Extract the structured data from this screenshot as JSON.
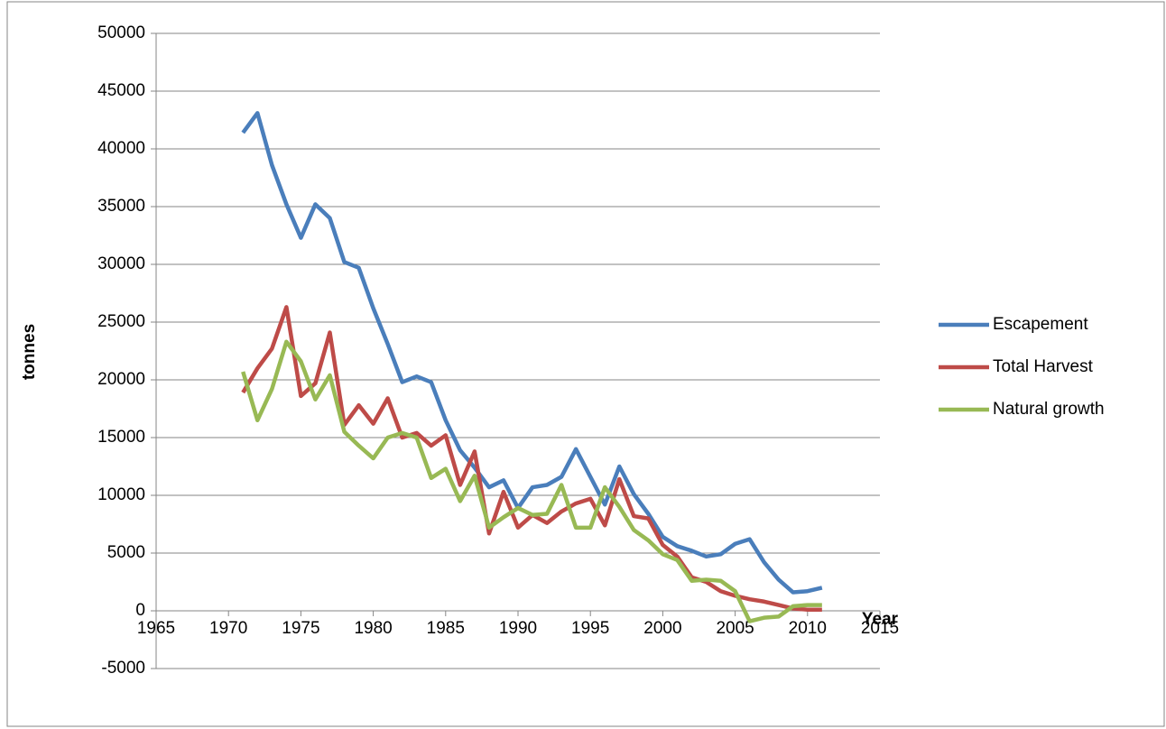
{
  "chart_data": {
    "type": "line",
    "x_label": "Year",
    "y_label": "tonnes",
    "x": [
      1971,
      1972,
      1973,
      1974,
      1975,
      1976,
      1977,
      1978,
      1979,
      1980,
      1981,
      1982,
      1983,
      1984,
      1985,
      1986,
      1987,
      1988,
      1989,
      1990,
      1991,
      1992,
      1993,
      1994,
      1995,
      1996,
      1997,
      1998,
      1999,
      2000,
      2001,
      2002,
      2003,
      2004,
      2005,
      2006,
      2007,
      2008,
      2009,
      2010,
      2011
    ],
    "series": [
      {
        "name": "Escapement",
        "color": "#4a7ebb",
        "values": [
          41400,
          43100,
          38600,
          35200,
          32300,
          35200,
          34000,
          30200,
          29700,
          26200,
          23100,
          19800,
          20300,
          19800,
          16500,
          13900,
          12400,
          10700,
          11300,
          8900,
          10700,
          10900,
          11600,
          14000,
          11600,
          9200,
          12500,
          10100,
          8400,
          6400,
          5600,
          5200,
          4700,
          4900,
          5800,
          6200,
          4200,
          2700,
          1600,
          1700,
          2000
        ]
      },
      {
        "name": "Total Harvest",
        "color": "#be4b48",
        "values": [
          18900,
          21000,
          22700,
          26300,
          18600,
          19700,
          24100,
          16100,
          17800,
          16200,
          18400,
          15000,
          15400,
          14300,
          15200,
          10900,
          13800,
          6700,
          10300,
          7200,
          8300,
          7600,
          8600,
          9300,
          9700,
          7400,
          11400,
          8200,
          8000,
          5700,
          4700,
          2900,
          2500,
          1700,
          1300,
          1000,
          800,
          500,
          200,
          100,
          100
        ]
      },
      {
        "name": "Natural growth",
        "color": "#98b954",
        "values": [
          20700,
          16500,
          19200,
          23300,
          21600,
          18300,
          20400,
          15500,
          14300,
          13200,
          15000,
          15400,
          15000,
          11500,
          12300,
          9500,
          11700,
          7200,
          8100,
          8900,
          8300,
          8400,
          10900,
          7200,
          7200,
          10700,
          9000,
          7000,
          6100,
          4900,
          4400,
          2600,
          2700,
          2600,
          1700,
          -900,
          -600,
          -500,
          400,
          500,
          500
        ]
      }
    ],
    "xlim": [
      1965,
      2015
    ],
    "xticks": [
      1965,
      1970,
      1975,
      1980,
      1985,
      1990,
      1995,
      2000,
      2005,
      2010,
      2015
    ],
    "ylim": [
      -5000,
      50000
    ],
    "yticks": [
      -5000,
      0,
      5000,
      10000,
      15000,
      20000,
      25000,
      30000,
      35000,
      40000,
      45000,
      50000
    ],
    "grid": true,
    "legend": "right"
  }
}
